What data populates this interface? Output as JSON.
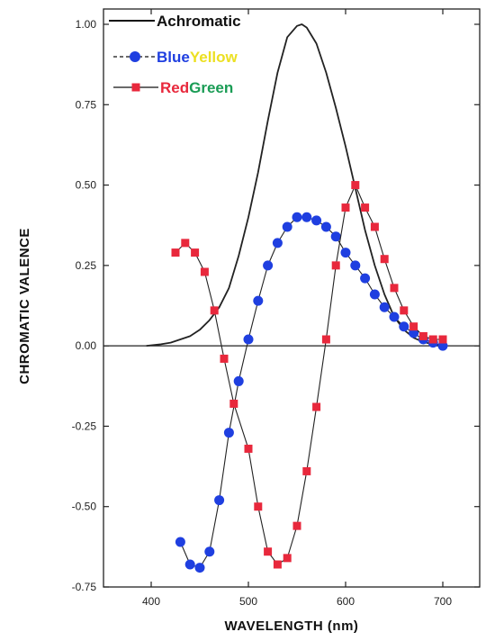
{
  "chart_data": {
    "type": "line",
    "xlabel": "WAVELENGTH (nm)",
    "ylabel": "CHROMATIC VALENCE",
    "xlim": [
      350,
      750
    ],
    "ylim": [
      -0.75,
      1.05
    ],
    "x_ticks": [
      400,
      500,
      600,
      700
    ],
    "x_tick_labels": [
      "400",
      "500",
      "600",
      "700"
    ],
    "y_ticks": [
      1.0,
      0.75,
      0.5,
      0.25,
      0.0,
      -0.25,
      -0.5,
      -0.75
    ],
    "y_tick_labels": [
      "1.00",
      "0.75",
      "0.50",
      "0.25",
      "0.00",
      "-0.25",
      "-0.50",
      "-0.75"
    ],
    "zero_line": true,
    "legend_position": "top-left",
    "series": [
      {
        "name": "Achromatic",
        "marker": "none",
        "color": "#111111",
        "x": [
          395,
          410,
          420,
          430,
          440,
          450,
          460,
          470,
          480,
          490,
          500,
          510,
          520,
          530,
          540,
          550,
          555,
          560,
          570,
          580,
          590,
          600,
          610,
          620,
          630,
          640,
          650,
          660,
          670,
          680,
          690,
          700
        ],
        "y": [
          0.0,
          0.005,
          0.01,
          0.02,
          0.03,
          0.05,
          0.08,
          0.12,
          0.18,
          0.28,
          0.4,
          0.54,
          0.7,
          0.85,
          0.96,
          0.995,
          1.0,
          0.99,
          0.94,
          0.85,
          0.74,
          0.62,
          0.49,
          0.36,
          0.25,
          0.16,
          0.09,
          0.05,
          0.025,
          0.012,
          0.005,
          0.0
        ]
      },
      {
        "name_parts": [
          {
            "text": "Blue",
            "color": "#1f3fe0"
          },
          {
            "text": "Yellow",
            "color": "#ece022"
          }
        ],
        "marker": "circle",
        "color": "#1f3fe0",
        "x": [
          430,
          440,
          450,
          460,
          470,
          480,
          490,
          500,
          510,
          520,
          530,
          540,
          550,
          560,
          570,
          580,
          590,
          600,
          610,
          620,
          630,
          640,
          650,
          660,
          670,
          680,
          690,
          700
        ],
        "y": [
          -0.61,
          -0.68,
          -0.69,
          -0.64,
          -0.48,
          -0.27,
          -0.11,
          0.02,
          0.14,
          0.25,
          0.32,
          0.37,
          0.4,
          0.4,
          0.39,
          0.37,
          0.34,
          0.29,
          0.25,
          0.21,
          0.16,
          0.12,
          0.09,
          0.06,
          0.04,
          0.02,
          0.01,
          0.0
        ]
      },
      {
        "name_parts": [
          {
            "text": "Red",
            "color": "#e8283c"
          },
          {
            "text": "Green",
            "color": "#1a9c55"
          }
        ],
        "marker": "square",
        "color": "#e8283c",
        "x": [
          425,
          435,
          445,
          455,
          465,
          475,
          485,
          500,
          510,
          520,
          530,
          540,
          550,
          560,
          570,
          580,
          590,
          600,
          610,
          620,
          630,
          640,
          650,
          660,
          670,
          680,
          690,
          700
        ],
        "y": [
          0.29,
          0.32,
          0.29,
          0.23,
          0.11,
          -0.04,
          -0.18,
          -0.32,
          -0.5,
          -0.64,
          -0.68,
          -0.66,
          -0.56,
          -0.39,
          -0.19,
          0.02,
          0.25,
          0.43,
          0.5,
          0.43,
          0.37,
          0.27,
          0.18,
          0.11,
          0.06,
          0.03,
          0.02,
          0.02
        ]
      }
    ]
  }
}
